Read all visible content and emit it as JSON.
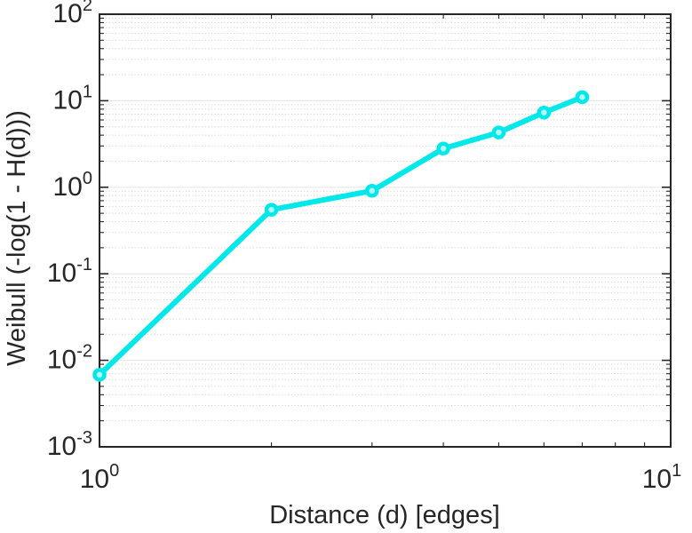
{
  "figure": {
    "background_color": "#ffffff",
    "axis_color": "#262626",
    "grid_major_color": "#e7e7e7",
    "grid_minor_color": "#cbcbcb"
  },
  "chart_data": {
    "type": "line",
    "xlabel": "Distance (d) [edges]",
    "ylabel": "Weibull (-log(1 - H(d)))",
    "x_scale": "log",
    "y_scale": "log",
    "xlim": [
      1,
      10
    ],
    "ylim": [
      0.001,
      100
    ],
    "x_major_ticks": [
      1,
      10
    ],
    "y_major_ticks": [
      0.001,
      0.01,
      0.1,
      1,
      10,
      100
    ],
    "x_tick_labels": [
      "10^0",
      "10^1"
    ],
    "y_tick_labels": [
      "10^-3",
      "10^-2",
      "10^-1",
      "10^0",
      "10^1",
      "10^2"
    ],
    "grid": {
      "y_major": true,
      "y_minor": true,
      "x_grid": false,
      "minor_style": "dotted"
    },
    "legend": false,
    "series": [
      {
        "color": "#00e8e9",
        "marker": "circle-open",
        "marker_fill": "#b4f8f9",
        "x": [
          1,
          2,
          3,
          4,
          5,
          6,
          7
        ],
        "y": [
          0.0068,
          0.55,
          0.91,
          2.8,
          4.3,
          7.3,
          11
        ]
      }
    ]
  }
}
